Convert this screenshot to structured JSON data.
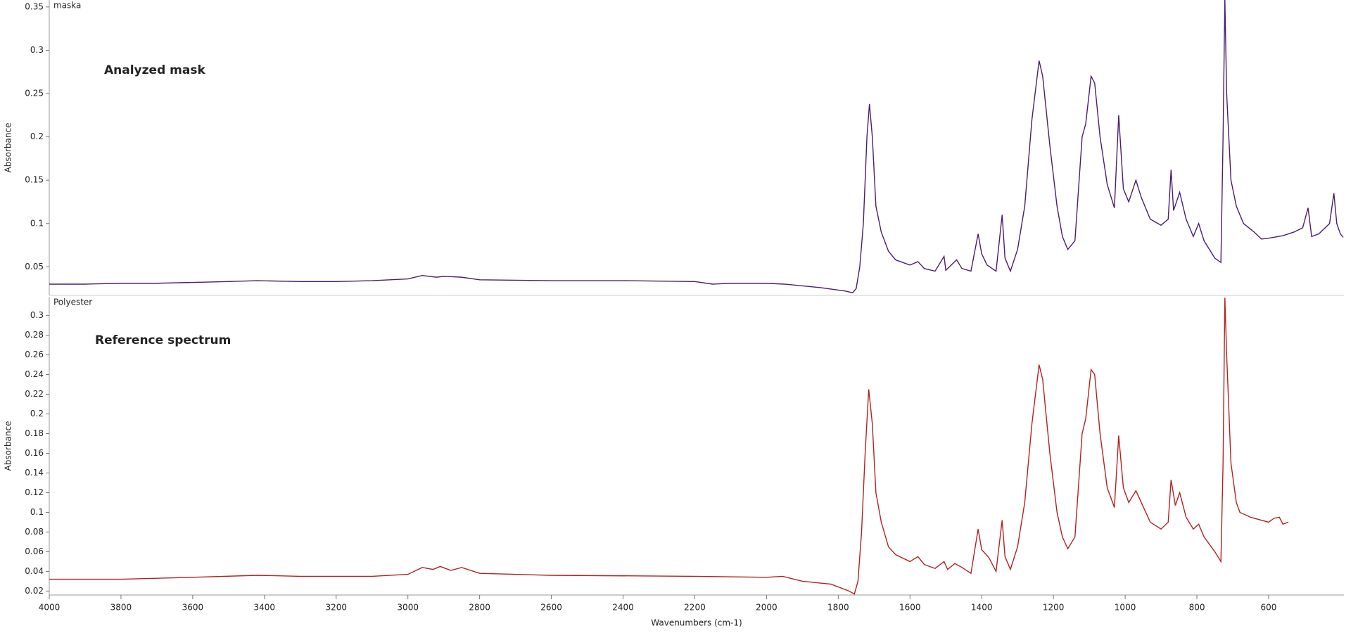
{
  "chart_data": [
    {
      "type": "line",
      "annotation": "Analyzed mask",
      "ylabel": "Absorbance",
      "xlim": [
        4000,
        390
      ],
      "ylim": [
        0.017,
        0.358
      ],
      "yticks": [
        0.05,
        0.1,
        0.15,
        0.2,
        0.25,
        0.3,
        0.35
      ],
      "ytick_labels_note": null,
      "x": [
        4000,
        3900,
        3800,
        3700,
        3600,
        3500,
        3420,
        3300,
        3200,
        3100,
        3000,
        2960,
        2920,
        2900,
        2850,
        2800,
        2600,
        2400,
        2200,
        2150,
        2100,
        2000,
        1950,
        1900,
        1850,
        1780,
        1760,
        1750,
        1740,
        1730,
        1720,
        1713,
        1705,
        1695,
        1680,
        1660,
        1640,
        1620,
        1600,
        1578,
        1560,
        1530,
        1505,
        1500,
        1470,
        1455,
        1430,
        1410,
        1400,
        1385,
        1360,
        1343,
        1335,
        1320,
        1300,
        1280,
        1260,
        1240,
        1230,
        1210,
        1190,
        1175,
        1160,
        1140,
        1120,
        1110,
        1095,
        1085,
        1070,
        1050,
        1030,
        1018,
        1005,
        990,
        970,
        955,
        930,
        900,
        880,
        872,
        865,
        848,
        830,
        810,
        795,
        780,
        750,
        733,
        727,
        722,
        717,
        705,
        690,
        670,
        640,
        620,
        600,
        560,
        530,
        505,
        490,
        480,
        460,
        430,
        418,
        410,
        400,
        392
      ],
      "series": [
        {
          "name": "maska",
          "color": "#4b1d6e",
          "values": [
            0.03,
            0.03,
            0.031,
            0.031,
            0.032,
            0.033,
            0.034,
            0.033,
            0.033,
            0.034,
            0.036,
            0.04,
            0.038,
            0.039,
            0.038,
            0.035,
            0.034,
            0.034,
            0.033,
            0.03,
            0.031,
            0.031,
            0.03,
            0.028,
            0.026,
            0.022,
            0.02,
            0.025,
            0.05,
            0.1,
            0.2,
            0.238,
            0.2,
            0.12,
            0.09,
            0.068,
            0.058,
            0.055,
            0.052,
            0.056,
            0.048,
            0.045,
            0.062,
            0.046,
            0.058,
            0.048,
            0.045,
            0.088,
            0.065,
            0.052,
            0.045,
            0.11,
            0.06,
            0.045,
            0.07,
            0.12,
            0.22,
            0.288,
            0.27,
            0.19,
            0.12,
            0.085,
            0.07,
            0.08,
            0.2,
            0.215,
            0.27,
            0.262,
            0.2,
            0.145,
            0.118,
            0.225,
            0.14,
            0.125,
            0.15,
            0.13,
            0.105,
            0.098,
            0.105,
            0.162,
            0.115,
            0.136,
            0.105,
            0.085,
            0.1,
            0.08,
            0.06,
            0.055,
            0.2,
            0.36,
            0.25,
            0.15,
            0.12,
            0.1,
            0.09,
            0.082,
            0.083,
            0.086,
            0.09,
            0.095,
            0.118,
            0.085,
            0.088,
            0.1,
            0.135,
            0.1,
            0.088,
            0.084
          ]
        }
      ]
    },
    {
      "type": "line",
      "annotation": "Reference spectrum",
      "ylabel": "Absorbance",
      "xlabel": "Wavenumbers (cm-1)",
      "xlim": [
        4000,
        390
      ],
      "xticks": [
        4000,
        3800,
        3600,
        3400,
        3200,
        3000,
        2800,
        2600,
        2400,
        2200,
        2000,
        1800,
        1600,
        1400,
        1200,
        1000,
        800,
        600
      ],
      "ylim": [
        0.016,
        0.319
      ],
      "yticks": [
        0.02,
        0.04,
        0.06,
        0.08,
        0.1,
        0.12,
        0.14,
        0.16,
        0.18,
        0.2,
        0.22,
        0.24,
        0.26,
        0.28,
        0.3
      ],
      "x": [
        4000,
        3800,
        3600,
        3420,
        3300,
        3100,
        3000,
        2960,
        2930,
        2910,
        2880,
        2850,
        2800,
        2600,
        2200,
        2000,
        1955,
        1900,
        1820,
        1770,
        1755,
        1745,
        1735,
        1725,
        1715,
        1705,
        1695,
        1680,
        1660,
        1640,
        1600,
        1578,
        1560,
        1530,
        1505,
        1495,
        1475,
        1455,
        1430,
        1410,
        1400,
        1380,
        1360,
        1343,
        1335,
        1320,
        1300,
        1280,
        1260,
        1240,
        1230,
        1210,
        1190,
        1175,
        1160,
        1140,
        1120,
        1110,
        1095,
        1085,
        1070,
        1050,
        1030,
        1018,
        1005,
        990,
        970,
        955,
        930,
        900,
        880,
        872,
        860,
        848,
        830,
        810,
        795,
        780,
        750,
        733,
        727,
        722,
        717,
        705,
        690,
        680,
        650,
        620,
        600,
        585,
        570,
        560,
        545
      ],
      "series": [
        {
          "name": "Polyester",
          "color": "#b22222",
          "values": [
            0.032,
            0.032,
            0.034,
            0.036,
            0.035,
            0.035,
            0.037,
            0.044,
            0.042,
            0.045,
            0.041,
            0.044,
            0.038,
            0.036,
            0.035,
            0.034,
            0.035,
            0.03,
            0.027,
            0.02,
            0.017,
            0.03,
            0.08,
            0.16,
            0.225,
            0.19,
            0.12,
            0.09,
            0.065,
            0.057,
            0.05,
            0.055,
            0.047,
            0.043,
            0.05,
            0.042,
            0.048,
            0.044,
            0.038,
            0.083,
            0.062,
            0.054,
            0.04,
            0.092,
            0.055,
            0.042,
            0.065,
            0.11,
            0.19,
            0.25,
            0.235,
            0.16,
            0.1,
            0.075,
            0.063,
            0.075,
            0.18,
            0.195,
            0.245,
            0.24,
            0.18,
            0.125,
            0.105,
            0.178,
            0.125,
            0.11,
            0.122,
            0.11,
            0.09,
            0.083,
            0.09,
            0.133,
            0.107,
            0.12,
            0.095,
            0.083,
            0.088,
            0.075,
            0.06,
            0.05,
            0.15,
            0.318,
            0.26,
            0.15,
            0.11,
            0.1,
            0.095,
            0.092,
            0.09,
            0.094,
            0.095,
            0.088,
            0.09
          ]
        }
      ]
    }
  ]
}
